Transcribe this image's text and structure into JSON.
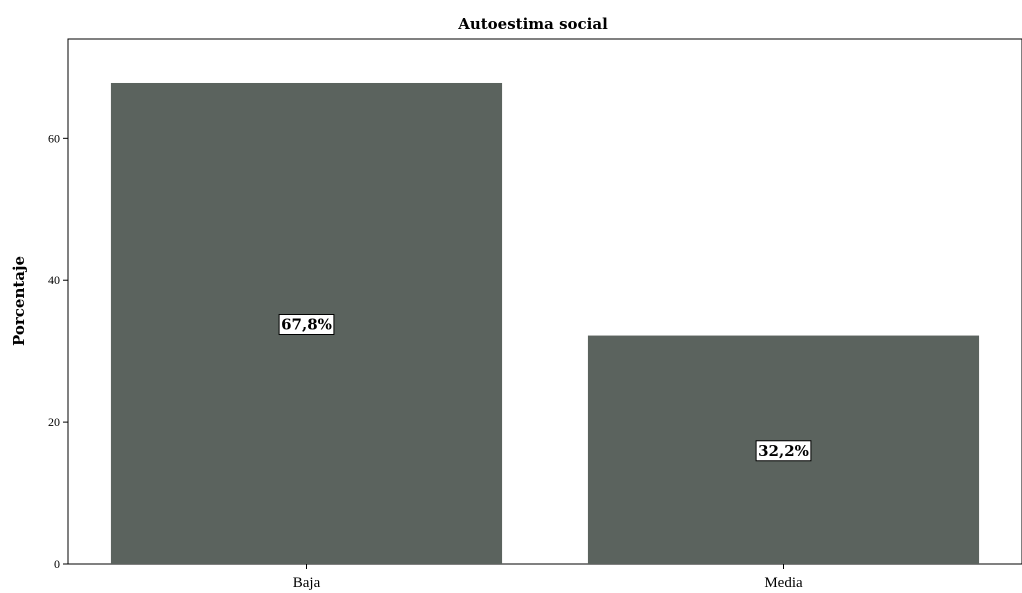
{
  "chart_data": {
    "type": "bar",
    "title": "Autoestima social",
    "xlabel": "",
    "ylabel": "Porcentaje",
    "categories": [
      "Baja",
      "Media"
    ],
    "values": [
      67.8,
      32.2
    ],
    "data_labels": [
      "67,8%",
      "32,2%"
    ],
    "ylim": [
      0,
      74
    ],
    "yticks": [
      0,
      20,
      40,
      60
    ],
    "ytick_labels": [
      "0",
      "20",
      "40",
      "60"
    ],
    "grid": false,
    "legend": "none",
    "bar_color": "#5b635e"
  }
}
